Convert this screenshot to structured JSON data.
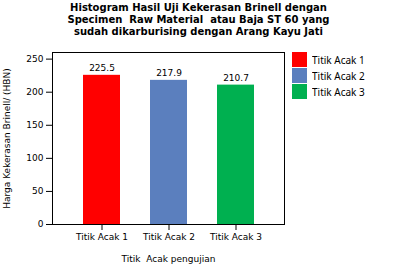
{
  "chart_data": {
    "type": "bar",
    "title": "Histogram Hasil Uji Kekerasan Brinell dengan\nSpecimen  Raw Material  atau Baja ST 60 yang\nsudah dikarburising dengan Arang Kayu Jati",
    "xlabel": "Titik  Acak pengujian",
    "ylabel": "Harga Kekerasan Brinell/ (HBN)",
    "categories": [
      "Titik Acak 1",
      "Titik Acak 2",
      "Titik Acak 3"
    ],
    "values": [
      225.5,
      217.9,
      210.7
    ],
    "colors": [
      "#ff0000",
      "#5b7fbe",
      "#00b050"
    ],
    "ylim": [
      0,
      260
    ],
    "yticks": [
      0,
      50,
      100,
      150,
      200,
      250
    ],
    "grid": false,
    "data_labels": true,
    "legend": "right"
  }
}
